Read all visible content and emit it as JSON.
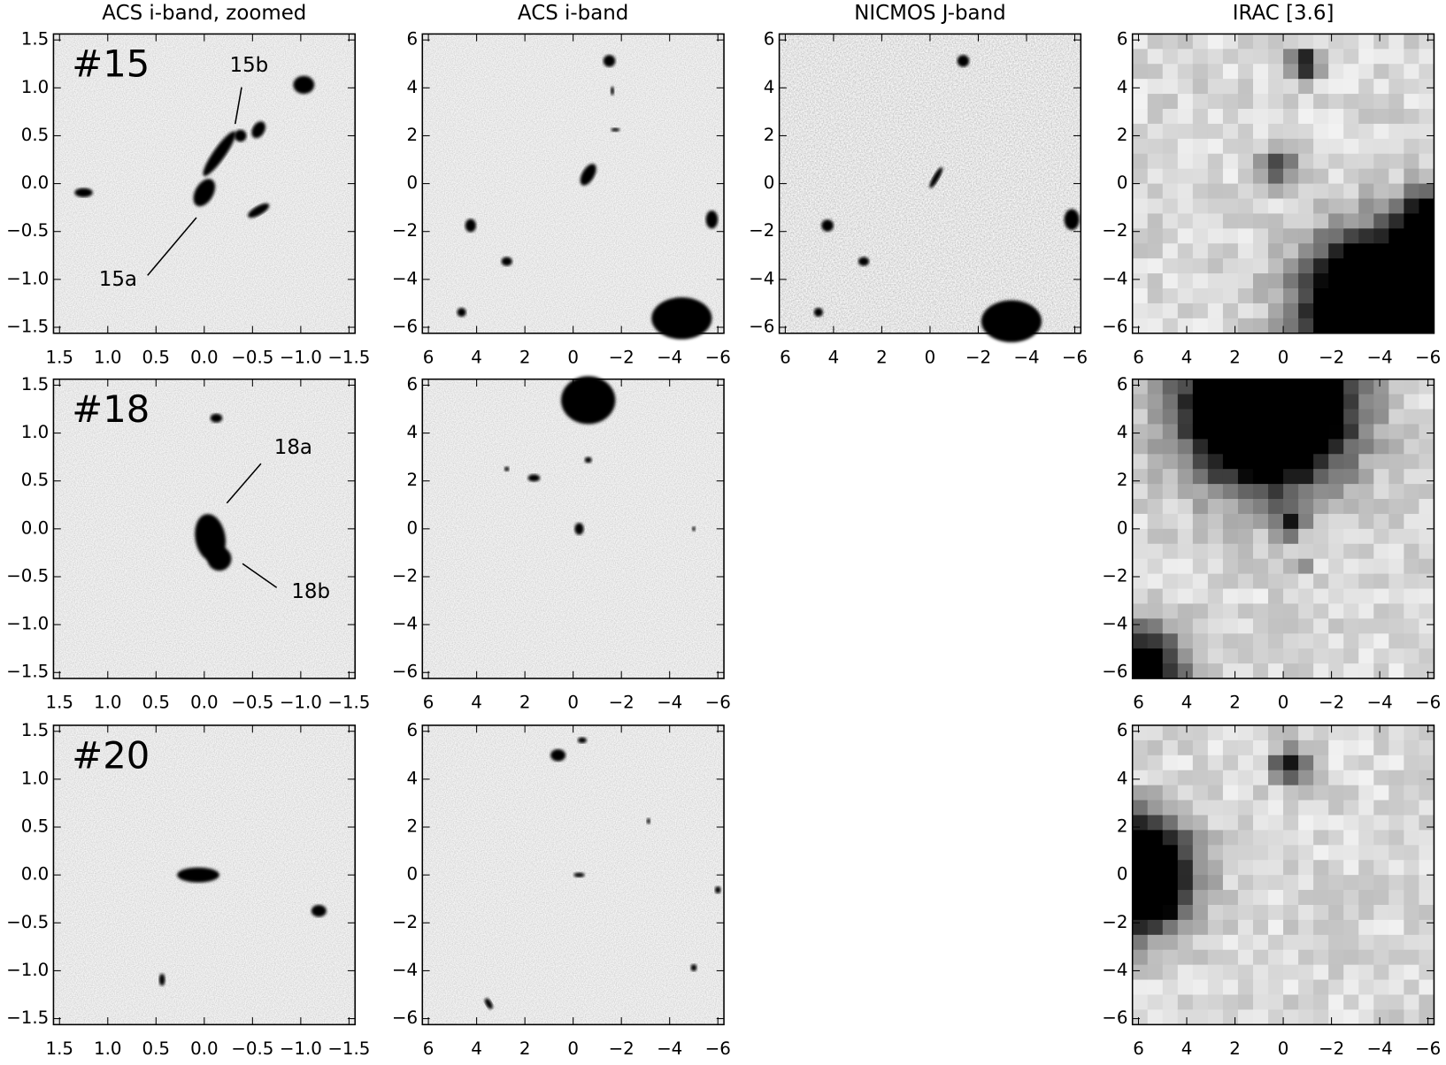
{
  "columns": [
    "ACS i-band, zoomed",
    "ACS i-band",
    "NICMOS J-band",
    "IRAC [3.6]"
  ],
  "zoomed_ticks": [
    "1.5",
    "1.0",
    "0.5",
    "0.0",
    "−0.5",
    "−1.0",
    "−1.5"
  ],
  "wide_ticks": [
    "6",
    "4",
    "2",
    "0",
    "−2",
    "−4",
    "−6"
  ],
  "rows": [
    {
      "label": "#15",
      "annotations": [
        "15a",
        "15b"
      ]
    },
    {
      "label": "#18",
      "annotations": [
        "18a",
        "18b"
      ]
    },
    {
      "label": "#20"
    }
  ]
}
